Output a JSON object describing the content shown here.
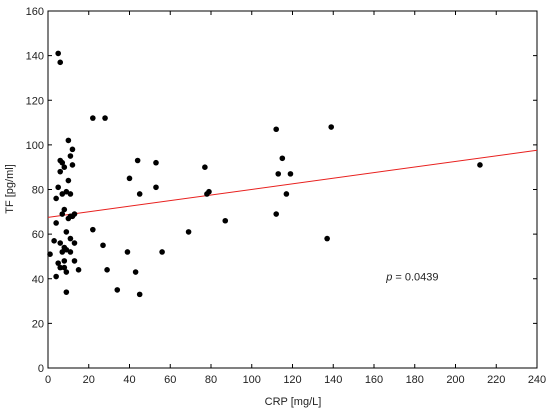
{
  "chart_data": {
    "type": "scatter",
    "xlabel": "CRP [mg/L]",
    "ylabel": "TF [pg/ml]",
    "xlim": [
      0,
      240
    ],
    "ylim": [
      0,
      160
    ],
    "x_ticks": [
      0,
      20,
      40,
      60,
      80,
      100,
      120,
      140,
      160,
      180,
      200,
      220,
      240
    ],
    "y_ticks": [
      0,
      20,
      40,
      60,
      80,
      100,
      120,
      140,
      160
    ],
    "grid": false,
    "point_color": "#000000",
    "trend_color": "#e8201e",
    "annotation": {
      "italic": "p",
      "text": " = 0.0439",
      "x": 166,
      "y": 41
    },
    "trendline": {
      "x": [
        0,
        240
      ],
      "y": [
        67.5,
        97.6
      ]
    },
    "points": [
      {
        "x": 1,
        "y": 51
      },
      {
        "x": 3,
        "y": 57
      },
      {
        "x": 4,
        "y": 41
      },
      {
        "x": 4,
        "y": 65
      },
      {
        "x": 4,
        "y": 76
      },
      {
        "x": 5,
        "y": 47
      },
      {
        "x": 5,
        "y": 81
      },
      {
        "x": 5,
        "y": 141
      },
      {
        "x": 6,
        "y": 137
      },
      {
        "x": 6,
        "y": 93
      },
      {
        "x": 6,
        "y": 45
      },
      {
        "x": 6,
        "y": 56
      },
      {
        "x": 6,
        "y": 88
      },
      {
        "x": 7,
        "y": 52
      },
      {
        "x": 7,
        "y": 69
      },
      {
        "x": 7,
        "y": 78
      },
      {
        "x": 7,
        "y": 92
      },
      {
        "x": 8,
        "y": 45
      },
      {
        "x": 8,
        "y": 48
      },
      {
        "x": 8,
        "y": 54
      },
      {
        "x": 8,
        "y": 71
      },
      {
        "x": 8,
        "y": 90
      },
      {
        "x": 9,
        "y": 34
      },
      {
        "x": 9,
        "y": 43
      },
      {
        "x": 9,
        "y": 53
      },
      {
        "x": 9,
        "y": 61
      },
      {
        "x": 9,
        "y": 79
      },
      {
        "x": 10,
        "y": 67
      },
      {
        "x": 10,
        "y": 84
      },
      {
        "x": 10,
        "y": 102
      },
      {
        "x": 11,
        "y": 52
      },
      {
        "x": 11,
        "y": 58
      },
      {
        "x": 11,
        "y": 68
      },
      {
        "x": 11,
        "y": 78
      },
      {
        "x": 11,
        "y": 95
      },
      {
        "x": 12,
        "y": 91
      },
      {
        "x": 12,
        "y": 98
      },
      {
        "x": 12,
        "y": 68
      },
      {
        "x": 13,
        "y": 56
      },
      {
        "x": 13,
        "y": 69
      },
      {
        "x": 13,
        "y": 48
      },
      {
        "x": 15,
        "y": 44
      },
      {
        "x": 22,
        "y": 112
      },
      {
        "x": 22,
        "y": 62
      },
      {
        "x": 28,
        "y": 112
      },
      {
        "x": 27,
        "y": 55
      },
      {
        "x": 29,
        "y": 44
      },
      {
        "x": 34,
        "y": 35
      },
      {
        "x": 39,
        "y": 52
      },
      {
        "x": 40,
        "y": 85
      },
      {
        "x": 43,
        "y": 43
      },
      {
        "x": 44,
        "y": 93
      },
      {
        "x": 45,
        "y": 78
      },
      {
        "x": 45,
        "y": 33
      },
      {
        "x": 53,
        "y": 92
      },
      {
        "x": 53,
        "y": 81
      },
      {
        "x": 56,
        "y": 52
      },
      {
        "x": 69,
        "y": 61
      },
      {
        "x": 77,
        "y": 90
      },
      {
        "x": 78,
        "y": 78
      },
      {
        "x": 79,
        "y": 79
      },
      {
        "x": 87,
        "y": 66
      },
      {
        "x": 112,
        "y": 69
      },
      {
        "x": 112,
        "y": 107
      },
      {
        "x": 113,
        "y": 87
      },
      {
        "x": 115,
        "y": 94
      },
      {
        "x": 117,
        "y": 78
      },
      {
        "x": 119,
        "y": 87
      },
      {
        "x": 137,
        "y": 58
      },
      {
        "x": 139,
        "y": 108
      },
      {
        "x": 212,
        "y": 91
      }
    ]
  }
}
